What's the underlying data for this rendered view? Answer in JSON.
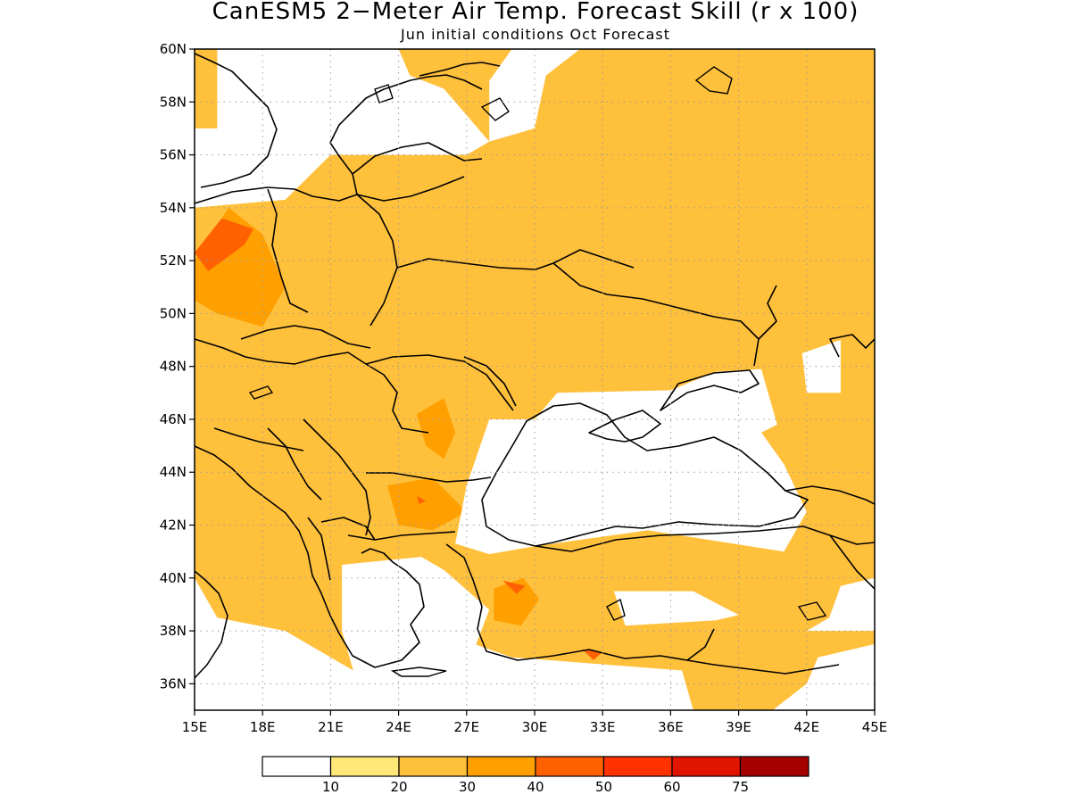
{
  "title": "CanESM5 2−Meter Air Temp. Forecast Skill (r x 100)",
  "subtitle": "Jun initial conditions  Oct Forecast",
  "axes": {
    "lon_ticks": [
      "15E",
      "18E",
      "21E",
      "24E",
      "27E",
      "30E",
      "33E",
      "36E",
      "39E",
      "42E",
      "45E"
    ],
    "lat_ticks": [
      "60N",
      "58N",
      "56N",
      "54N",
      "52N",
      "50N",
      "48N",
      "46N",
      "44N",
      "42N",
      "40N",
      "38N",
      "36N"
    ],
    "lon_range": [
      15,
      45
    ],
    "lat_range": [
      35,
      60
    ],
    "grid": "dotted"
  },
  "colorbar": {
    "labels": [
      "10",
      "20",
      "30",
      "40",
      "50",
      "60",
      "75"
    ],
    "colors": [
      "#ffffff",
      "#ffe878",
      "#ffc03c",
      "#ffa000",
      "#ff6000",
      "#ff3200",
      "#e11400",
      "#a50000"
    ]
  },
  "map_data": {
    "type": "filled-contour",
    "region": "Eastern Europe, Black Sea and Anatolia",
    "zones": [
      {
        "level": 2,
        "poly": [
          [
            15,
            47
          ],
          [
            20,
            47
          ],
          [
            24,
            46
          ],
          [
            26,
            44
          ],
          [
            28,
            42
          ],
          [
            27,
            40
          ],
          [
            22,
            40
          ],
          [
            19,
            43
          ],
          [
            15,
            45
          ]
        ]
      },
      {
        "level": 2,
        "poly": [
          [
            21,
            56
          ],
          [
            27,
            56
          ],
          [
            31,
            51
          ],
          [
            35,
            50
          ],
          [
            38,
            49.5
          ],
          [
            39,
            48
          ],
          [
            36,
            47
          ],
          [
            30,
            46.5
          ],
          [
            27,
            47
          ],
          [
            24,
            48
          ],
          [
            20,
            49
          ],
          [
            15,
            49
          ]
        ]
      },
      {
        "level": 2,
        "poly": [
          [
            42,
            60
          ],
          [
            45,
            60
          ],
          [
            45,
            44
          ],
          [
            41,
            45
          ],
          [
            41,
            51
          ],
          [
            42,
            53
          ],
          [
            42,
            56
          ]
        ]
      },
      {
        "level": 2,
        "poly": [
          [
            28.8,
            40.2
          ],
          [
            31,
            40
          ],
          [
            32,
            38.5
          ],
          [
            31,
            37
          ],
          [
            29,
            37
          ],
          [
            28,
            38.5
          ]
        ]
      },
      {
        "level": 2,
        "poly": [
          [
            37,
            38
          ],
          [
            40,
            37
          ],
          [
            41,
            37.5
          ],
          [
            40.5,
            35
          ],
          [
            37,
            35
          ]
        ]
      },
      {
        "level": 2,
        "poly": [
          [
            40.5,
            44.5
          ],
          [
            43,
            44.5
          ],
          [
            45,
            43
          ],
          [
            43,
            42
          ],
          [
            41,
            43
          ]
        ]
      },
      {
        "level": 2,
        "poly": [
          [
            15,
            60
          ],
          [
            16,
            60
          ],
          [
            16,
            57
          ],
          [
            15,
            57
          ]
        ]
      },
      {
        "level": 2,
        "poly": [
          [
            17.5,
            37.8
          ],
          [
            21.5,
            38.5
          ],
          [
            22.5,
            39.5
          ],
          [
            20.5,
            40.5
          ],
          [
            19,
            40
          ]
        ]
      },
      {
        "level": 2,
        "poly": [
          [
            16.5,
            44
          ],
          [
            21,
            45
          ],
          [
            20,
            42
          ],
          [
            17.5,
            41.5
          ]
        ]
      },
      {
        "level": 3,
        "poly": [
          [
            15,
            52
          ],
          [
            16.5,
            54
          ],
          [
            18,
            53
          ],
          [
            19,
            51
          ],
          [
            18,
            49.5
          ],
          [
            16,
            50
          ],
          [
            15,
            50.5
          ]
        ]
      },
      {
        "level": 3,
        "poly": [
          [
            24.8,
            46.2
          ],
          [
            26,
            46.8
          ],
          [
            26.5,
            45.5
          ],
          [
            26,
            44.5
          ],
          [
            25.2,
            45
          ]
        ]
      },
      {
        "level": 3,
        "poly": [
          [
            23.5,
            43.5
          ],
          [
            25.5,
            43.8
          ],
          [
            27,
            42.5
          ],
          [
            25.5,
            41.8
          ],
          [
            24,
            42
          ]
        ]
      },
      {
        "level": 3,
        "poly": [
          [
            28.2,
            39.6
          ],
          [
            29.5,
            40
          ],
          [
            30.2,
            39.2
          ],
          [
            29.4,
            38.2
          ],
          [
            28.2,
            38.4
          ]
        ]
      },
      {
        "level": 4,
        "poly": [
          [
            15,
            52.3
          ],
          [
            16.2,
            53.6
          ],
          [
            17.6,
            53.2
          ],
          [
            17.2,
            52.6
          ],
          [
            15.6,
            51.6
          ]
        ]
      },
      {
        "level": 4,
        "poly": [
          [
            28.6,
            39.9
          ],
          [
            29.6,
            39.7
          ],
          [
            29.2,
            39.4
          ]
        ]
      },
      {
        "level": 4,
        "poly": [
          [
            24.8,
            43.1
          ],
          [
            25.2,
            42.9
          ],
          [
            24.9,
            42.8
          ]
        ]
      },
      {
        "level": 4,
        "poly": [
          [
            32.1,
            37.3
          ],
          [
            33,
            37.2
          ],
          [
            32.6,
            36.9
          ]
        ]
      }
    ],
    "masked": [
      {
        "poly": [
          [
            16,
            60
          ],
          [
            24,
            60
          ],
          [
            24.5,
            59
          ],
          [
            26,
            58.5
          ],
          [
            28,
            56.5
          ],
          [
            27,
            56
          ],
          [
            21,
            56
          ],
          [
            19,
            54.3
          ],
          [
            15,
            54
          ],
          [
            15,
            57
          ],
          [
            16,
            57
          ]
        ]
      },
      {
        "poly": [
          [
            28,
            56.5
          ],
          [
            30,
            57
          ],
          [
            30.5,
            59
          ],
          [
            32,
            60
          ],
          [
            29,
            60
          ],
          [
            28,
            58.8
          ]
        ]
      },
      {
        "poly": [
          [
            27,
            43.5
          ],
          [
            28,
            46
          ],
          [
            30,
            46
          ],
          [
            31,
            47
          ],
          [
            36,
            47.1
          ],
          [
            38,
            47.8
          ],
          [
            40,
            47.9
          ],
          [
            40.7,
            45.8
          ],
          [
            40,
            45.5
          ],
          [
            41,
            44.3
          ],
          [
            42,
            42.5
          ],
          [
            41,
            41
          ],
          [
            35,
            41.8
          ],
          [
            30,
            41.2
          ],
          [
            28,
            40.9
          ],
          [
            26.5,
            41.3
          ]
        ]
      },
      {
        "poly": [
          [
            21.5,
            40.5
          ],
          [
            25,
            40.8
          ],
          [
            26,
            40.3
          ],
          [
            28,
            38.8
          ],
          [
            27.2,
            37
          ],
          [
            22,
            36.5
          ],
          [
            21.5,
            38
          ]
        ]
      },
      {
        "poly": [
          [
            15,
            35
          ],
          [
            37,
            35
          ],
          [
            36.5,
            36.5
          ],
          [
            32,
            36.8
          ],
          [
            29,
            37
          ],
          [
            27,
            37.6
          ],
          [
            22,
            36.5
          ],
          [
            19,
            38
          ],
          [
            16,
            38.5
          ],
          [
            15,
            40
          ]
        ]
      },
      {
        "poly": [
          [
            33.5,
            39.5
          ],
          [
            37,
            39.5
          ],
          [
            39,
            38.6
          ],
          [
            38,
            38.4
          ],
          [
            34,
            38.2
          ]
        ]
      },
      {
        "poly": [
          [
            42,
            38
          ],
          [
            45,
            38
          ],
          [
            45,
            40
          ],
          [
            43.5,
            39.7
          ],
          [
            43,
            38.5
          ]
        ]
      },
      {
        "poly": [
          [
            41.8,
            48.5
          ],
          [
            43.5,
            49
          ],
          [
            43.5,
            47
          ],
          [
            42,
            47
          ]
        ]
      },
      {
        "poly": [
          [
            40.5,
            35
          ],
          [
            45,
            35
          ],
          [
            45,
            37.5
          ],
          [
            42.5,
            37
          ],
          [
            42,
            36
          ]
        ]
      }
    ]
  }
}
